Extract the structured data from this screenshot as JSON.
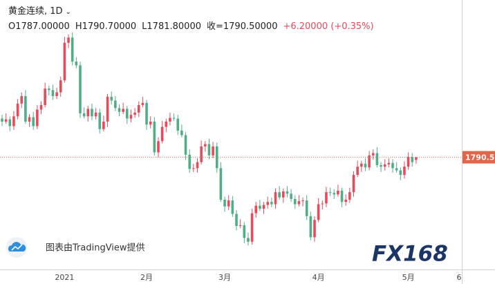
{
  "chart_data": {
    "type": "candlestick",
    "title": "黄金连续, 1D",
    "legend_text": [
      "O1787.00000",
      "H1790.70000",
      "L1781.80000",
      "收=1790.50000",
      "+6.20000 (+0.35%)"
    ],
    "annotations": {
      "attribution": "图表由TradingView提供",
      "logo": "FX168"
    },
    "up_color": "#e84a5a",
    "down_color": "#4fae86",
    "price_line": {
      "value": 1790.5,
      "label": "1790.50",
      "color": "#e0654a"
    },
    "ylim": [
      1641,
      2000
    ],
    "categories": [
      null,
      null,
      null,
      null,
      null,
      null,
      null,
      null,
      null,
      null,
      null,
      null,
      null,
      null,
      null,
      null,
      "2021",
      null,
      null,
      null,
      null,
      null,
      null,
      null,
      null,
      null,
      null,
      null,
      null,
      null,
      null,
      null,
      null,
      null,
      null,
      null,
      null,
      "2月",
      null,
      null,
      null,
      null,
      null,
      null,
      null,
      null,
      null,
      null,
      null,
      null,
      null,
      null,
      null,
      null,
      null,
      null,
      null,
      "3月",
      null,
      null,
      null,
      null,
      null,
      null,
      null,
      null,
      null,
      null,
      null,
      null,
      null,
      null,
      null,
      null,
      null,
      null,
      null,
      null,
      null,
      null,
      null,
      "4月",
      null,
      null,
      null,
      null,
      null,
      null,
      null,
      null,
      null,
      null,
      null,
      null,
      null,
      null,
      null,
      null,
      null,
      null,
      null,
      null,
      null,
      null,
      "5月",
      null,
      null,
      null,
      null,
      null,
      null,
      null,
      null,
      null,
      null,
      null,
      null,
      "6"
    ],
    "open": [
      1842,
      1838,
      1841,
      1832,
      1845,
      1862,
      1872,
      1838,
      1844,
      1832,
      1854,
      1860,
      1882,
      1880,
      1872,
      1877,
      1893,
      1943,
      1950,
      1918,
      1913,
      1849,
      1845,
      1855,
      1845,
      1850,
      1828,
      1838,
      1871,
      1866,
      1856,
      1851,
      1855,
      1842,
      1847,
      1850,
      1860,
      1863,
      1834,
      1838,
      1797,
      1812,
      1831,
      1838,
      1843,
      1842,
      1826,
      1820,
      1794,
      1775,
      1776,
      1784,
      1805,
      1808,
      1793,
      1805,
      1776,
      1734,
      1725,
      1733,
      1715,
      1699,
      1700,
      1683,
      1678,
      1716,
      1726,
      1722,
      1727,
      1731,
      1728,
      1744,
      1737,
      1745,
      1742,
      1735,
      1728,
      1732,
      1733,
      1712,
      1684,
      1707,
      1728,
      1729,
      1744,
      1743,
      1741,
      1746,
      1731,
      1734,
      1744,
      1767,
      1778,
      1782,
      1777,
      1793,
      1796,
      1780,
      1778,
      1781,
      1783,
      1776,
      1773,
      1767,
      1778,
      1791,
      1787,
      null,
      null,
      null,
      null,
      null,
      null,
      null,
      null,
      null,
      null,
      null
    ],
    "high": [
      1847,
      1849,
      1845,
      1852,
      1868,
      1877,
      1880,
      1848,
      1851,
      1860,
      1865,
      1890,
      1886,
      1887,
      1883,
      1898,
      1951,
      1954,
      1957,
      1924,
      1918,
      1857,
      1859,
      1862,
      1856,
      1855,
      1846,
      1875,
      1878,
      1872,
      1861,
      1863,
      1859,
      1854,
      1856,
      1865,
      1871,
      1867,
      1845,
      1844,
      1817,
      1839,
      1842,
      1850,
      1849,
      1847,
      1834,
      1824,
      1801,
      1782,
      1789,
      1813,
      1812,
      1815,
      1811,
      1810,
      1784,
      1738,
      1740,
      1739,
      1720,
      1708,
      1704,
      1690,
      1722,
      1731,
      1734,
      1731,
      1738,
      1737,
      1749,
      1752,
      1749,
      1752,
      1748,
      1740,
      1740,
      1737,
      1740,
      1718,
      1712,
      1736,
      1733,
      1751,
      1750,
      1748,
      1754,
      1750,
      1741,
      1750,
      1772,
      1786,
      1786,
      1789,
      1799,
      1801,
      1804,
      1784,
      1788,
      1789,
      1788,
      1784,
      1777,
      1785,
      1797,
      1796,
      1790.7,
      null,
      null,
      null,
      null,
      null,
      null,
      null,
      null,
      null,
      null,
      null
    ],
    "low": [
      1832,
      1835,
      1825,
      1827,
      1841,
      1856,
      1835,
      1831,
      1827,
      1828,
      1848,
      1857,
      1873,
      1867,
      1868,
      1871,
      1890,
      1936,
      1913,
      1909,
      1843,
      1842,
      1838,
      1840,
      1841,
      1822,
      1825,
      1831,
      1861,
      1852,
      1845,
      1848,
      1835,
      1837,
      1843,
      1844,
      1857,
      1827,
      1829,
      1793,
      1791,
      1809,
      1824,
      1833,
      1839,
      1820,
      1817,
      1787,
      1770,
      1771,
      1770,
      1781,
      1798,
      1788,
      1789,
      1770,
      1731,
      1718,
      1720,
      1711,
      1693,
      1696,
      1676,
      1673,
      1674,
      1710,
      1719,
      1715,
      1722,
      1724,
      1722,
      1734,
      1730,
      1737,
      1731,
      1722,
      1725,
      1725,
      1707,
      1680,
      1678,
      1704,
      1721,
      1724,
      1739,
      1735,
      1738,
      1724,
      1726,
      1730,
      1738,
      1764,
      1771,
      1772,
      1773,
      1787,
      1777,
      1771,
      1773,
      1777,
      1770,
      1770,
      1760,
      1762,
      1774,
      1778,
      1781.8,
      null,
      null,
      null,
      null,
      null,
      null,
      null,
      null,
      null,
      null,
      null
    ],
    "close": [
      1838,
      1841,
      1832,
      1845,
      1862,
      1872,
      1838,
      1844,
      1832,
      1854,
      1860,
      1882,
      1880,
      1872,
      1877,
      1893,
      1943,
      1950,
      1918,
      1913,
      1849,
      1845,
      1855,
      1845,
      1850,
      1828,
      1838,
      1871,
      1866,
      1856,
      1851,
      1855,
      1842,
      1847,
      1850,
      1860,
      1863,
      1834,
      1838,
      1797,
      1812,
      1831,
      1838,
      1843,
      1842,
      1826,
      1820,
      1794,
      1775,
      1776,
      1784,
      1805,
      1808,
      1793,
      1805,
      1776,
      1734,
      1725,
      1733,
      1715,
      1699,
      1700,
      1683,
      1678,
      1716,
      1726,
      1722,
      1727,
      1731,
      1728,
      1744,
      1737,
      1745,
      1742,
      1735,
      1728,
      1732,
      1733,
      1712,
      1684,
      1707,
      1728,
      1729,
      1744,
      1743,
      1741,
      1746,
      1731,
      1734,
      1744,
      1767,
      1778,
      1782,
      1777,
      1793,
      1796,
      1780,
      1778,
      1781,
      1783,
      1776,
      1773,
      1767,
      1778,
      1791,
      1784,
      1790.5,
      null,
      null,
      null,
      null,
      null,
      null,
      null,
      null,
      null,
      null,
      null
    ]
  }
}
